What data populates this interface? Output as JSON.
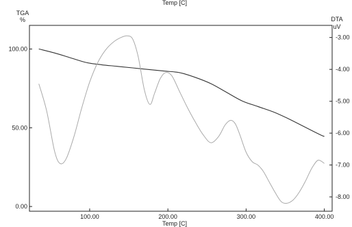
{
  "chart_data": {
    "type": "line",
    "title": "Temp  [C]",
    "xlabel": "Temp  [C]",
    "x_ticks": [
      100,
      200,
      300,
      400
    ],
    "x_tick_labels": [
      "100.00",
      "200.00",
      "300.00",
      "400.00"
    ],
    "xlim": [
      23,
      410
    ],
    "y_left": {
      "label_line1": "TGA",
      "label_line2": "%",
      "ticks": [
        0,
        50,
        100
      ],
      "tick_labels": [
        "0.00",
        "50.00",
        "100.00"
      ],
      "ylim": [
        -3,
        115
      ]
    },
    "y_right": {
      "label_line1": "DTA",
      "label_line2": "uV",
      "ticks": [
        -3,
        -4,
        -5,
        -6,
        -7,
        -8
      ],
      "tick_labels": [
        "-3.00",
        "-4.00",
        "-5.00",
        "-6.00",
        "-7.00",
        "-8.00"
      ],
      "ylim": [
        -8.45,
        -2.62
      ]
    },
    "grid": false,
    "series": [
      {
        "axis": "left",
        "color": "#333333",
        "x": [
          35,
          55,
          75,
          95,
          115,
          135,
          155,
          175,
          195,
          215,
          235,
          255,
          275,
          295,
          315,
          335,
          355,
          375,
          395,
          400
        ],
        "y": [
          100,
          97.5,
          94.5,
          91.5,
          90,
          89,
          88,
          87,
          86,
          85,
          82,
          78,
          72.5,
          67,
          63.5,
          60,
          55.5,
          50.5,
          45.5,
          44.5
        ]
      },
      {
        "axis": "right",
        "color": "#aaaaaa",
        "x": [
          35,
          45,
          55,
          62,
          70,
          80,
          90,
          100,
          110,
          120,
          130,
          140,
          148,
          155,
          162,
          170,
          177,
          183,
          190,
          197,
          205,
          215,
          225,
          235,
          245,
          255,
          265,
          273,
          280,
          286,
          292,
          300,
          308,
          315,
          322,
          330,
          338,
          345,
          352,
          360,
          368,
          376,
          384,
          392,
          400
        ],
        "y": [
          -4.45,
          -5.3,
          -6.55,
          -6.95,
          -6.8,
          -6.1,
          -5.2,
          -4.4,
          -3.8,
          -3.4,
          -3.15,
          -3.0,
          -2.95,
          -3.05,
          -3.6,
          -4.65,
          -5.1,
          -4.75,
          -4.3,
          -4.1,
          -4.2,
          -4.7,
          -5.2,
          -5.65,
          -6.05,
          -6.3,
          -6.1,
          -5.75,
          -5.6,
          -5.7,
          -6.05,
          -6.6,
          -6.9,
          -7.0,
          -7.2,
          -7.55,
          -7.9,
          -8.15,
          -8.2,
          -8.1,
          -7.85,
          -7.5,
          -7.1,
          -6.85,
          -6.95
        ]
      }
    ]
  }
}
